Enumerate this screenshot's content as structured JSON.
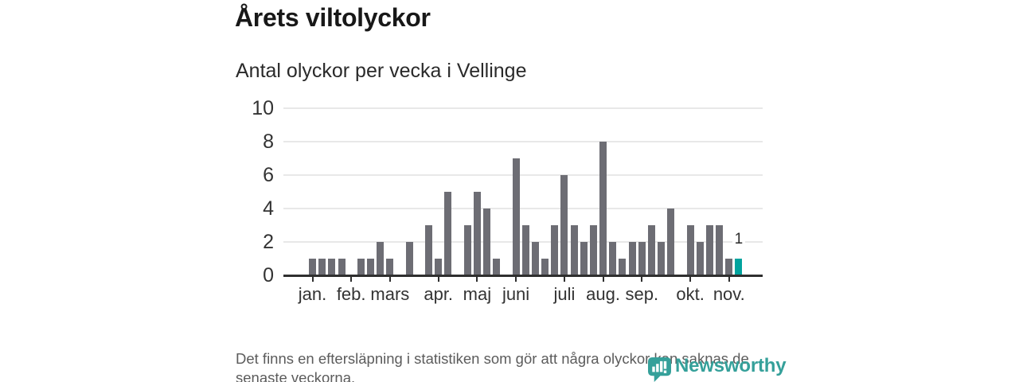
{
  "header": {
    "title": "Årets viltolyckor",
    "subtitle": "Antal olyckor per vecka i Vellinge"
  },
  "chart_data": {
    "type": "bar",
    "title": "Årets viltolyckor",
    "subtitle": "Antal olyckor per vecka i Vellinge",
    "x_unit": "vecka",
    "values_by_week": [
      1,
      1,
      1,
      1,
      0,
      1,
      1,
      2,
      1,
      0,
      2,
      0,
      3,
      1,
      5,
      0,
      3,
      5,
      4,
      1,
      0,
      7,
      3,
      2,
      1,
      3,
      6,
      3,
      2,
      3,
      8,
      2,
      1,
      2,
      2,
      3,
      2,
      4,
      0,
      3,
      2,
      3,
      3,
      1,
      1
    ],
    "month_ticks": [
      {
        "week_index": 0,
        "label": "jan."
      },
      {
        "week_index": 4,
        "label": "feb."
      },
      {
        "week_index": 8,
        "label": "mars"
      },
      {
        "week_index": 13,
        "label": "apr."
      },
      {
        "week_index": 17,
        "label": "maj"
      },
      {
        "week_index": 21,
        "label": "juni"
      },
      {
        "week_index": 26,
        "label": "juli"
      },
      {
        "week_index": 30,
        "label": "aug."
      },
      {
        "week_index": 34,
        "label": "sep."
      },
      {
        "week_index": 39,
        "label": "okt."
      },
      {
        "week_index": 43,
        "label": "nov."
      }
    ],
    "yticks": [
      0,
      2,
      4,
      6,
      8,
      10
    ],
    "ylim": [
      0,
      10
    ],
    "grid": true,
    "legend": "none",
    "bar_color": "#6d6d74",
    "highlight_color": "#00a39e",
    "highlight_last": true,
    "last_bar_label": "1"
  },
  "footer": {
    "note_lines": [
      "Det finns en eftersläpning i statistiken som gör att några olyckor kan saknas de",
      "senaste veckorna."
    ],
    "brand": "Newsworthy",
    "brand_color": "#35a09a"
  }
}
